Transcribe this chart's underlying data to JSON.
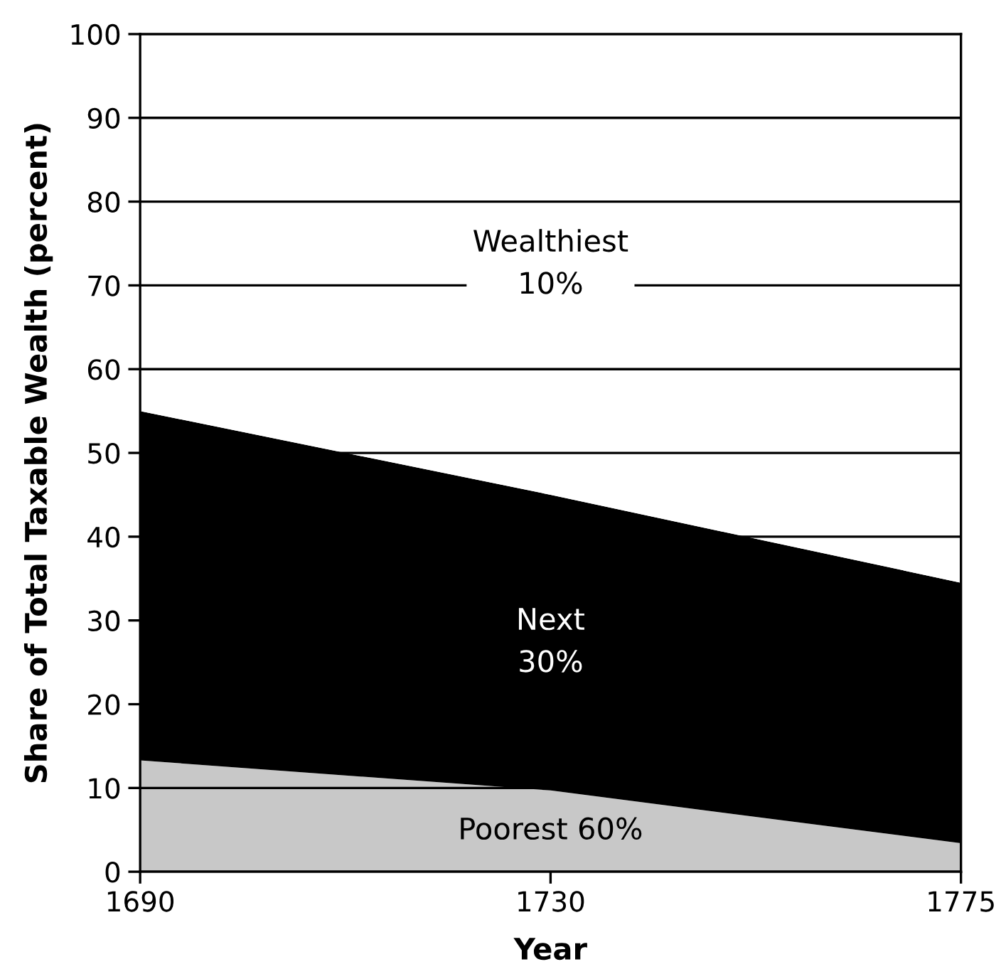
{
  "chart_data": {
    "type": "area",
    "stacked": true,
    "xlabel": "Year",
    "ylabel": "Share of Total Taxable Wealth (percent)",
    "categories": [
      "1690",
      "1730",
      "1775"
    ],
    "series": [
      {
        "name": "Poorest 60%",
        "color": "#c8c8c8",
        "values": [
          13.3,
          9.7,
          3.4
        ]
      },
      {
        "name": "Next\n30%",
        "color": "#000000",
        "values": [
          41.7,
          35.3,
          31.1
        ]
      },
      {
        "name": "Wealthiest\n10%",
        "color": "#ffffff",
        "values": [
          45,
          55,
          65.5
        ]
      }
    ],
    "ylim": [
      0,
      100
    ],
    "yticks": [
      0,
      10,
      20,
      30,
      40,
      50,
      60,
      70,
      80,
      90,
      100
    ],
    "grid": "y",
    "legend": false
  }
}
